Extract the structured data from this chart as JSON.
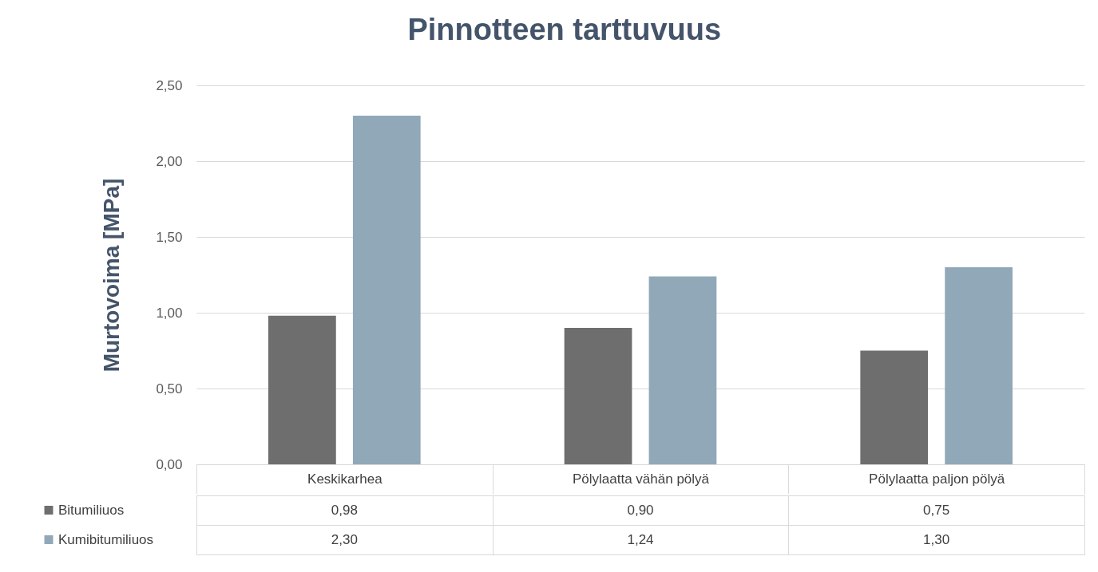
{
  "chart_data": {
    "type": "bar",
    "title": "Pinnotteen tarttuvuus",
    "ylabel": "Murtovoima [MPa]",
    "categories": [
      "Keskikarhea",
      "Pölylaatta vähän pölyä",
      "Pölylaatta paljon pölyä"
    ],
    "series": [
      {
        "name": "Bitumiliuos",
        "color": "#6e6e6e",
        "values": [
          0.98,
          0.9,
          0.75
        ],
        "value_labels": [
          "0,98",
          "0,90",
          "0,75"
        ]
      },
      {
        "name": "Kumibitumiliuos",
        "color": "#91a8b8",
        "values": [
          2.3,
          1.24,
          1.3
        ],
        "value_labels": [
          "2,30",
          "1,24",
          "1,30"
        ]
      }
    ],
    "ylim": [
      0,
      2.5
    ],
    "yticks": [
      {
        "value": 0,
        "label": "0,00"
      },
      {
        "value": 0.5,
        "label": "0,50"
      },
      {
        "value": 1,
        "label": "1,00"
      },
      {
        "value": 1.5,
        "label": "1,50"
      },
      {
        "value": 2,
        "label": "2,00"
      },
      {
        "value": 2.5,
        "label": "2,50"
      }
    ],
    "grid": "y",
    "legend": "bottom"
  }
}
